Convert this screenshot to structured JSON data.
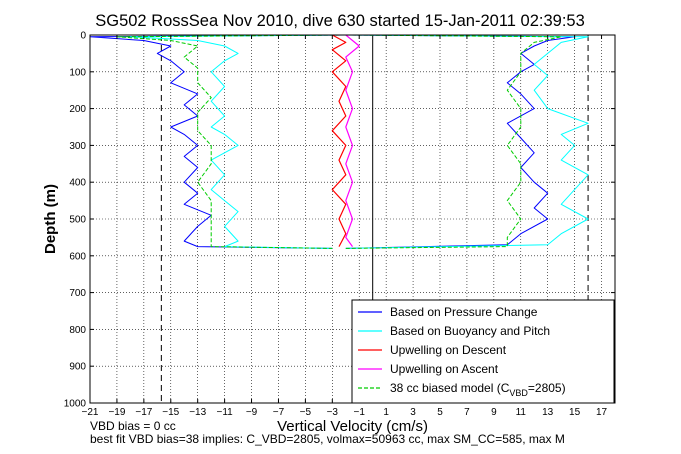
{
  "chart_data": {
    "type": "line",
    "title": "SG502 RossSea Nov 2010, dive 630 started 15-Jan-2011 02:39:53",
    "xlabel": "Vertical Velocity (cm/s)",
    "ylabel": "Depth (m)",
    "xlim": [
      -21,
      18
    ],
    "ylim": [
      0,
      1000
    ],
    "y_reversed": true,
    "xticks": [
      -21,
      -19,
      -17,
      -15,
      -13,
      -11,
      -9,
      -7,
      -5,
      -3,
      -1,
      1,
      3,
      5,
      7,
      9,
      11,
      13,
      15,
      17
    ],
    "yticks": [
      0,
      100,
      200,
      300,
      400,
      500,
      600,
      700,
      800,
      900,
      1000
    ],
    "vlines": {
      "dashed": [
        -15.7,
        16
      ],
      "solid_zero": 0
    },
    "legend_location": "bottom-right",
    "legend": [
      {
        "label": "Based on Pressure Change",
        "color": "#0000ff",
        "dash": false
      },
      {
        "label": "Based on Buoyancy and Pitch",
        "color": "#00ffff",
        "dash": false
      },
      {
        "label": "Upwelling on Descent",
        "color": "#ff0000",
        "dash": false
      },
      {
        "label": "Upwelling on Ascent",
        "color": "#ff00ff",
        "dash": false
      },
      {
        "label": "38 cc biased model (C",
        "sub": "VBD",
        "suffix": "=2805)",
        "color": "#00cc00",
        "dash": true
      }
    ],
    "series": [
      {
        "name": "Based on Pressure Change (descent)",
        "color": "#0000ff",
        "points": [
          [
            -2,
            0
          ],
          [
            -21,
            5
          ],
          [
            -17,
            15
          ],
          [
            -15,
            30
          ],
          [
            -16,
            50
          ],
          [
            -15,
            70
          ],
          [
            -14,
            100
          ],
          [
            -15,
            130
          ],
          [
            -13,
            160
          ],
          [
            -14,
            190
          ],
          [
            -13,
            220
          ],
          [
            -15,
            250
          ],
          [
            -14,
            270
          ],
          [
            -13,
            300
          ],
          [
            -14,
            330
          ],
          [
            -13,
            360
          ],
          [
            -14,
            400
          ],
          [
            -13,
            430
          ],
          [
            -14,
            460
          ],
          [
            -12,
            490
          ],
          [
            -13,
            520
          ],
          [
            -14,
            560
          ],
          [
            -13,
            575
          ],
          [
            -3,
            580
          ]
        ]
      },
      {
        "name": "Based on Buoyancy and Pitch (descent)",
        "color": "#00ffff",
        "points": [
          [
            -2,
            0
          ],
          [
            -18,
            5
          ],
          [
            -13,
            15
          ],
          [
            -11,
            30
          ],
          [
            -10,
            50
          ],
          [
            -11,
            70
          ],
          [
            -12,
            100
          ],
          [
            -11,
            140
          ],
          [
            -12,
            180
          ],
          [
            -11,
            220
          ],
          [
            -12,
            250
          ],
          [
            -11,
            270
          ],
          [
            -10,
            300
          ],
          [
            -12,
            340
          ],
          [
            -11,
            380
          ],
          [
            -12,
            420
          ],
          [
            -11,
            450
          ],
          [
            -10,
            480
          ],
          [
            -11,
            520
          ],
          [
            -10,
            560
          ],
          [
            -11,
            575
          ],
          [
            -3,
            580
          ]
        ]
      },
      {
        "name": "38 cc biased model (descent)",
        "color": "#00cc00",
        "points": [
          [
            -2,
            0
          ],
          [
            -19,
            5
          ],
          [
            -15,
            15
          ],
          [
            -13,
            30
          ],
          [
            -14,
            60
          ],
          [
            -13,
            90
          ],
          [
            -13,
            130
          ],
          [
            -12,
            170
          ],
          [
            -13,
            210
          ],
          [
            -13,
            260
          ],
          [
            -12,
            300
          ],
          [
            -12,
            350
          ],
          [
            -13,
            400
          ],
          [
            -12,
            450
          ],
          [
            -12,
            500
          ],
          [
            -12,
            550
          ],
          [
            -12,
            575
          ],
          [
            -3,
            580
          ]
        ]
      },
      {
        "name": "Based on Pressure Change (ascent)",
        "color": "#0000ff",
        "points": [
          [
            -2,
            0
          ],
          [
            15,
            5
          ],
          [
            13,
            15
          ],
          [
            12,
            30
          ],
          [
            11,
            50
          ],
          [
            12,
            80
          ],
          [
            11,
            100
          ],
          [
            10,
            130
          ],
          [
            11,
            160
          ],
          [
            12,
            200
          ],
          [
            10,
            240
          ],
          [
            11,
            280
          ],
          [
            12,
            320
          ],
          [
            11,
            360
          ],
          [
            12,
            400
          ],
          [
            13,
            430
          ],
          [
            12,
            470
          ],
          [
            13,
            500
          ],
          [
            11,
            540
          ],
          [
            10,
            570
          ],
          [
            -2,
            580
          ]
        ]
      },
      {
        "name": "Based on Buoyancy and Pitch (ascent)",
        "color": "#00ffff",
        "points": [
          [
            -2,
            0
          ],
          [
            16,
            5
          ],
          [
            14,
            20
          ],
          [
            13,
            50
          ],
          [
            12,
            80
          ],
          [
            13,
            110
          ],
          [
            12,
            150
          ],
          [
            13,
            200
          ],
          [
            16,
            240
          ],
          [
            14,
            270
          ],
          [
            15,
            300
          ],
          [
            14,
            340
          ],
          [
            16,
            380
          ],
          [
            15,
            420
          ],
          [
            14,
            460
          ],
          [
            16,
            500
          ],
          [
            14,
            540
          ],
          [
            13,
            570
          ],
          [
            -2,
            580
          ]
        ]
      },
      {
        "name": "38 cc biased model (ascent)",
        "color": "#00cc00",
        "points": [
          [
            -2,
            0
          ],
          [
            14,
            5
          ],
          [
            12,
            20
          ],
          [
            11,
            50
          ],
          [
            11,
            100
          ],
          [
            10,
            150
          ],
          [
            11,
            200
          ],
          [
            11,
            250
          ],
          [
            10,
            300
          ],
          [
            11,
            350
          ],
          [
            11,
            400
          ],
          [
            10,
            450
          ],
          [
            11,
            500
          ],
          [
            10,
            550
          ],
          [
            10,
            575
          ],
          [
            -2,
            580
          ]
        ]
      },
      {
        "name": "Upwelling on Descent",
        "color": "#ff0000",
        "points": [
          [
            -3,
            0
          ],
          [
            -2,
            20
          ],
          [
            -3,
            40
          ],
          [
            -2,
            70
          ],
          [
            -3,
            100
          ],
          [
            -2,
            140
          ],
          [
            -2.5,
            180
          ],
          [
            -2,
            220
          ],
          [
            -3,
            260
          ],
          [
            -2,
            300
          ],
          [
            -2.5,
            340
          ],
          [
            -2,
            380
          ],
          [
            -3,
            420
          ],
          [
            -2,
            460
          ],
          [
            -2.5,
            500
          ],
          [
            -2,
            540
          ],
          [
            -2.5,
            575
          ]
        ]
      },
      {
        "name": "Upwelling on Ascent",
        "color": "#ff00ff",
        "points": [
          [
            -2,
            0
          ],
          [
            -1,
            30
          ],
          [
            -2,
            60
          ],
          [
            -1.5,
            100
          ],
          [
            -2,
            150
          ],
          [
            -1.5,
            200
          ],
          [
            -2,
            250
          ],
          [
            -1.5,
            300
          ],
          [
            -2,
            350
          ],
          [
            -1.5,
            400
          ],
          [
            -2,
            450
          ],
          [
            -1.5,
            500
          ],
          [
            -2,
            550
          ],
          [
            -1.5,
            575
          ]
        ]
      }
    ]
  },
  "footer": {
    "line1": "VBD bias = 0 cc",
    "line2": "best fit VBD bias=38 implies: C_VBD=2805, volmax=50963 cc, max SM_CC=585, max M"
  },
  "colors": {
    "background": "#ffffff",
    "axes": "#000000"
  }
}
